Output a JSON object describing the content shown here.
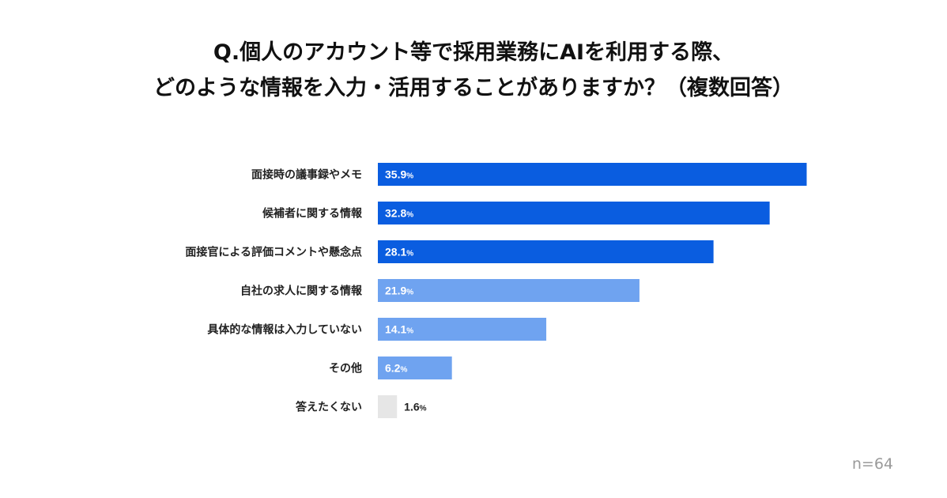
{
  "title_lines": [
    "Q.個人のアカウント等で採用業務にAIを利用する際、",
    "どのような情報を入力・活用することがありますか？（複数回答）"
  ],
  "note": "n=64",
  "colors": {
    "dark_bar": "#0a5de0",
    "light_bar": "#6fa3f0",
    "gray_bar": "#e6e6e6",
    "label_text": "#222222",
    "value_text_inside": "#ffffff",
    "value_text_outside": "#222222"
  },
  "chart_data": {
    "type": "bar",
    "orientation": "horizontal",
    "title": "Q.個人のアカウント等で採用業務にAIを利用する際、どのような情報を入力・活用することがありますか？（複数回答）",
    "categories": [
      "面接時の議事録やメモ",
      "候補者に関する情報",
      "面接官による評価コメントや懸念点",
      "自社の求人に関する情報",
      "具体的な情報は入力していない",
      "その他",
      "答えたくない"
    ],
    "values": [
      35.9,
      32.8,
      28.1,
      21.9,
      14.1,
      6.2,
      1.6
    ],
    "value_labels": [
      "35.9",
      "32.8",
      "28.1",
      "21.9",
      "14.1",
      "6.2",
      "1.6"
    ],
    "unit": "%",
    "bar_color_groups": [
      "dark",
      "dark",
      "dark",
      "light",
      "light",
      "light",
      "gray"
    ],
    "xlim": [
      0,
      36
    ],
    "grid": false,
    "legend": "none"
  }
}
